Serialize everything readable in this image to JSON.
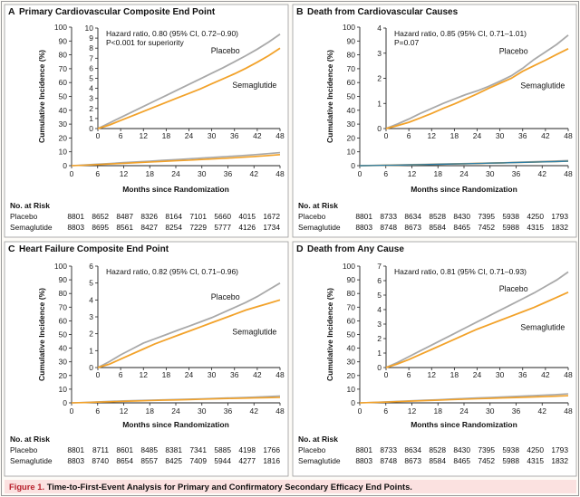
{
  "figure": {
    "caption_label": "Figure 1.",
    "caption_text": "Time-to-First-Event Analysis for Primary and Confirmatory Secondary Efficacy End Points.",
    "colors": {
      "placebo": "#a9a9a9",
      "semaglutide": "#f2a22a",
      "semaglutide_alt": "#2f7fa6",
      "caption_bg": "#fbe1e0",
      "caption_label": "#b8202c",
      "frame": "#9a9a9a"
    }
  },
  "chart_data": [
    {
      "type": "line",
      "letter": "A",
      "title": "Primary Cardiovascular Composite End Point",
      "xlabel": "Months since Randomization",
      "ylabel": "Cumulative Incidence (%)",
      "x_ticks": [
        0,
        6,
        12,
        18,
        24,
        30,
        36,
        42,
        48
      ],
      "main_y_ticks": [
        0,
        10,
        20,
        30,
        40,
        50,
        60,
        70,
        80,
        90,
        100
      ],
      "main_ylim": [
        0,
        100
      ],
      "inset_y_ticks": [
        0,
        1,
        2,
        3,
        4,
        5,
        6,
        7,
        8,
        9,
        10
      ],
      "inset_ylim": [
        0,
        10
      ],
      "annotation": [
        "Hazard ratio, 0.80 (95% CI, 0.72–0.90)",
        "P<0.001 for superiority"
      ],
      "placebo_label": "Placebo",
      "semaglutide_label": "Semaglutide",
      "series": [
        {
          "name": "Placebo",
          "x": [
            0,
            3,
            6,
            9,
            12,
            15,
            18,
            21,
            24,
            27,
            30,
            33,
            36,
            39,
            42,
            45,
            48
          ],
          "values": [
            0,
            0.55,
            1.1,
            1.65,
            2.2,
            2.75,
            3.3,
            3.85,
            4.4,
            4.95,
            5.5,
            6.05,
            6.65,
            7.25,
            7.9,
            8.6,
            9.4
          ]
        },
        {
          "name": "Semaglutide",
          "x": [
            0,
            3,
            6,
            9,
            12,
            15,
            18,
            21,
            24,
            27,
            30,
            33,
            36,
            39,
            42,
            45,
            48
          ],
          "values": [
            0,
            0.35,
            0.8,
            1.25,
            1.7,
            2.15,
            2.6,
            3.05,
            3.5,
            3.95,
            4.45,
            4.95,
            5.45,
            6.0,
            6.6,
            7.25,
            8.0
          ]
        }
      ],
      "risk_table": {
        "title": "No. at Risk",
        "rows": [
          {
            "name": "Placebo",
            "values": [
              8801,
              8652,
              8487,
              8326,
              8164,
              7101,
              5660,
              4015,
              1672
            ]
          },
          {
            "name": "Semaglutide",
            "values": [
              8803,
              8695,
              8561,
              8427,
              8254,
              7229,
              5777,
              4126,
              1734
            ]
          }
        ]
      }
    },
    {
      "type": "line",
      "letter": "B",
      "title": "Death from Cardiovascular Causes",
      "xlabel": "Months since Randomization",
      "ylabel": "Cumulative Incidence (%)",
      "x_ticks": [
        0,
        6,
        12,
        18,
        24,
        30,
        36,
        42,
        48
      ],
      "main_y_ticks": [
        0,
        10,
        20,
        30,
        40,
        50,
        60,
        70,
        80,
        90,
        100
      ],
      "main_ylim": [
        0,
        100
      ],
      "inset_y_ticks": [
        0,
        1,
        2,
        3,
        4
      ],
      "inset_ylim": [
        0,
        4
      ],
      "annotation": [
        "Hazard ratio, 0.85 (95% CI, 0.71–1.01)",
        "P=0.07"
      ],
      "placebo_label": "Placebo",
      "semaglutide_label": "Semaglutide",
      "series": [
        {
          "name": "Placebo",
          "x": [
            0,
            3,
            6,
            9,
            12,
            15,
            18,
            21,
            24,
            27,
            30,
            33,
            36,
            39,
            42,
            45,
            48
          ],
          "values": [
            0,
            0.18,
            0.38,
            0.6,
            0.8,
            1.0,
            1.18,
            1.35,
            1.5,
            1.68,
            1.88,
            2.1,
            2.4,
            2.75,
            3.05,
            3.35,
            3.72
          ]
        },
        {
          "name": "Semaglutide",
          "x": [
            0,
            3,
            6,
            9,
            12,
            15,
            18,
            21,
            24,
            27,
            30,
            33,
            36,
            39,
            42,
            45,
            48
          ],
          "values": [
            0,
            0.12,
            0.25,
            0.42,
            0.6,
            0.8,
            0.98,
            1.18,
            1.38,
            1.6,
            1.8,
            2.0,
            2.28,
            2.5,
            2.72,
            2.95,
            3.18
          ]
        }
      ],
      "risk_table": {
        "title": "No. at Risk",
        "rows": [
          {
            "name": "Placebo",
            "values": [
              8801,
              8733,
              8634,
              8528,
              8430,
              7395,
              5938,
              4250,
              1793
            ]
          },
          {
            "name": "Semaglutide",
            "values": [
              8803,
              8748,
              8673,
              8584,
              8465,
              7452,
              5988,
              4315,
              1832
            ]
          }
        ]
      }
    },
    {
      "type": "line",
      "letter": "C",
      "title": "Heart Failure Composite End Point",
      "xlabel": "Months since Randomization",
      "ylabel": "Cumulative Incidence (%)",
      "x_ticks": [
        0,
        6,
        12,
        18,
        24,
        30,
        36,
        42,
        48
      ],
      "main_y_ticks": [
        0,
        10,
        20,
        30,
        40,
        50,
        60,
        70,
        80,
        90,
        100
      ],
      "main_ylim": [
        0,
        100
      ],
      "inset_y_ticks": [
        0,
        1,
        2,
        3,
        4,
        5,
        6
      ],
      "inset_ylim": [
        0,
        6
      ],
      "annotation": [
        "Hazard ratio, 0.82 (95% CI, 0.71–0.96)"
      ],
      "placebo_label": "Placebo",
      "semaglutide_label": "Semaglutide",
      "series": [
        {
          "name": "Placebo",
          "x": [
            0,
            3,
            6,
            9,
            12,
            15,
            18,
            21,
            24,
            27,
            30,
            33,
            36,
            39,
            42,
            45,
            48
          ],
          "values": [
            0,
            0.35,
            0.75,
            1.1,
            1.45,
            1.7,
            1.95,
            2.2,
            2.45,
            2.7,
            2.95,
            3.25,
            3.55,
            3.85,
            4.2,
            4.6,
            5.0
          ]
        },
        {
          "name": "Semaglutide",
          "x": [
            0,
            3,
            6,
            9,
            12,
            15,
            18,
            21,
            24,
            27,
            30,
            33,
            36,
            39,
            42,
            45,
            48
          ],
          "values": [
            0,
            0.2,
            0.5,
            0.8,
            1.1,
            1.4,
            1.65,
            1.9,
            2.15,
            2.4,
            2.65,
            2.9,
            3.15,
            3.4,
            3.6,
            3.8,
            4.0
          ]
        }
      ],
      "risk_table": {
        "title": "No. at Risk",
        "rows": [
          {
            "name": "Placebo",
            "values": [
              8801,
              8711,
              8601,
              8485,
              8381,
              7341,
              5885,
              4198,
              1766
            ]
          },
          {
            "name": "Semaglutide",
            "values": [
              8803,
              8740,
              8654,
              8557,
              8425,
              7409,
              5944,
              4277,
              1816
            ]
          }
        ]
      }
    },
    {
      "type": "line",
      "letter": "D",
      "title": "Death from Any Cause",
      "xlabel": "Months since Randomization",
      "ylabel": "Cumulative Incidence (%)",
      "x_ticks": [
        0,
        6,
        12,
        18,
        24,
        30,
        36,
        42,
        48
      ],
      "main_y_ticks": [
        0,
        10,
        20,
        30,
        40,
        50,
        60,
        70,
        80,
        90,
        100
      ],
      "main_ylim": [
        0,
        100
      ],
      "inset_y_ticks": [
        0,
        1,
        2,
        3,
        4,
        5,
        6,
        7
      ],
      "inset_ylim": [
        0,
        7
      ],
      "annotation": [
        "Hazard ratio, 0.81 (95% CI, 0.71–0.93)"
      ],
      "placebo_label": "Placebo",
      "semaglutide_label": "Semaglutide",
      "series": [
        {
          "name": "Placebo",
          "x": [
            0,
            3,
            6,
            9,
            12,
            15,
            18,
            21,
            24,
            27,
            30,
            33,
            36,
            39,
            42,
            45,
            48
          ],
          "values": [
            0,
            0.35,
            0.75,
            1.15,
            1.55,
            1.95,
            2.35,
            2.75,
            3.15,
            3.55,
            3.95,
            4.35,
            4.75,
            5.15,
            5.6,
            6.05,
            6.6
          ]
        },
        {
          "name": "Semaglutide",
          "x": [
            0,
            3,
            6,
            9,
            12,
            15,
            18,
            21,
            24,
            27,
            30,
            33,
            36,
            39,
            42,
            45,
            48
          ],
          "values": [
            0,
            0.25,
            0.55,
            0.9,
            1.25,
            1.6,
            1.95,
            2.3,
            2.65,
            2.95,
            3.25,
            3.55,
            3.85,
            4.15,
            4.5,
            4.85,
            5.2
          ]
        }
      ],
      "risk_table": {
        "title": "No. at Risk",
        "rows": [
          {
            "name": "Placebo",
            "values": [
              8801,
              8733,
              8634,
              8528,
              8430,
              7395,
              5938,
              4250,
              1793
            ]
          },
          {
            "name": "Semaglutide",
            "values": [
              8803,
              8748,
              8673,
              8584,
              8465,
              7452,
              5988,
              4315,
              1832
            ]
          }
        ]
      }
    }
  ]
}
